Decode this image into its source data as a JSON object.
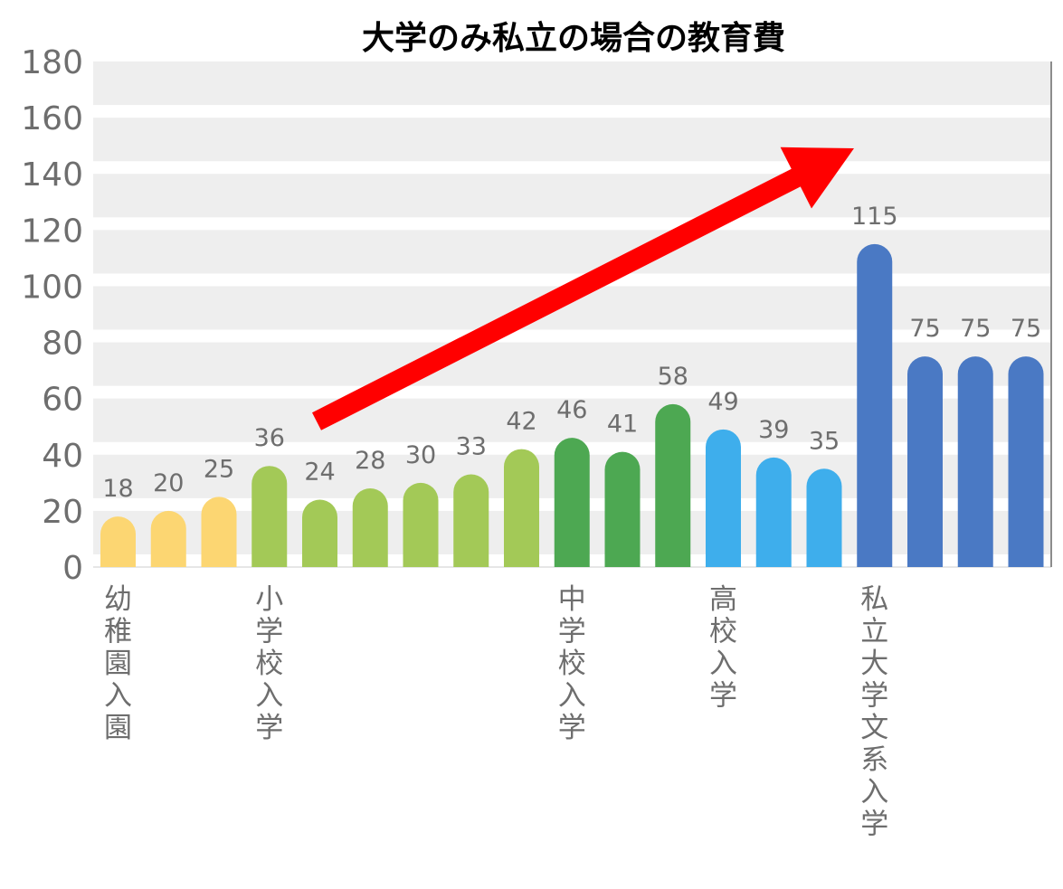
{
  "chart_data": {
    "type": "bar",
    "title": "大学のみ私立の場合の教育費",
    "xlabel": "",
    "ylabel": "",
    "ylim": [
      0,
      180
    ],
    "yticks": [
      0,
      20,
      40,
      60,
      80,
      100,
      120,
      140,
      160,
      180
    ],
    "grid": "horizontal bands",
    "values": [
      18,
      20,
      25,
      36,
      24,
      28,
      30,
      33,
      42,
      46,
      41,
      58,
      49,
      39,
      35,
      115,
      75,
      75,
      75
    ],
    "colors": [
      "#fcd672",
      "#fcd672",
      "#fcd672",
      "#a3c957",
      "#a3c957",
      "#a3c957",
      "#a3c957",
      "#a3c957",
      "#a3c957",
      "#4da852",
      "#4da852",
      "#4da852",
      "#3eaeec",
      "#3eaeec",
      "#3eaeec",
      "#4a79c4",
      "#4a79c4",
      "#4a79c4",
      "#4a79c4"
    ],
    "category_labels": [
      {
        "index": 0,
        "text": "幼稚園入園"
      },
      {
        "index": 3,
        "text": "小学校入学"
      },
      {
        "index": 9,
        "text": "中学校入学"
      },
      {
        "index": 12,
        "text": "高校入学"
      },
      {
        "index": 15,
        "text": "私立大学文系入学"
      }
    ],
    "annotation": {
      "type": "arrow",
      "color": "#ff0000"
    }
  }
}
